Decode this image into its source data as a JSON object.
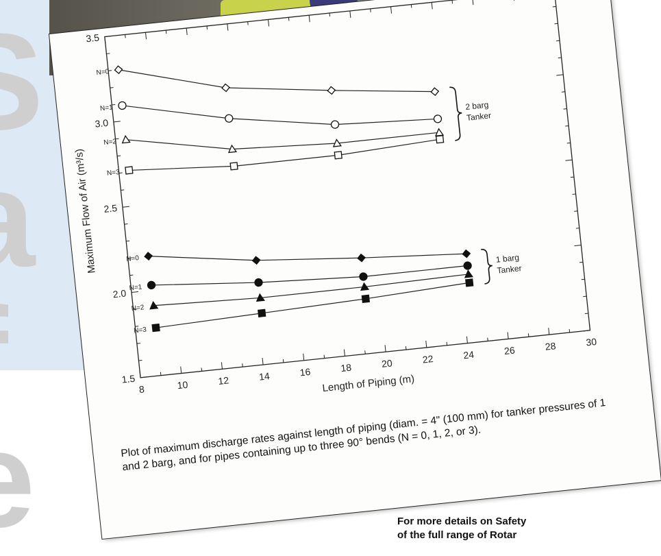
{
  "background": {
    "accent_blue": "#dde9f5",
    "letters": [
      "S",
      "a",
      "f",
      "e"
    ]
  },
  "chart_data": {
    "type": "line",
    "xlabel": "Length of Piping (m)",
    "ylabel": "Maximum Flow of Air (m³/s)",
    "xlim": [
      8,
      30
    ],
    "ylim": [
      1.5,
      3.5
    ],
    "x_ticks": [
      8,
      10,
      12,
      14,
      16,
      18,
      20,
      22,
      24,
      26,
      28,
      30
    ],
    "y_ticks": [
      1.5,
      2.0,
      2.5,
      3.0,
      3.5
    ],
    "grid": false,
    "series": [
      {
        "name": "N=0",
        "group": "2 barg",
        "marker": "diamond-open",
        "x": [
          8.5,
          13.6,
          18.7,
          23.7
        ],
        "y": [
          3.3,
          3.13,
          3.05,
          2.98
        ]
      },
      {
        "name": "N=1",
        "group": "2 barg",
        "marker": "circle-open",
        "x": [
          8.5,
          13.6,
          18.7,
          23.7
        ],
        "y": [
          3.09,
          2.95,
          2.85,
          2.82
        ]
      },
      {
        "name": "N=2",
        "group": "2 barg",
        "marker": "triangle-open",
        "x": [
          8.5,
          13.6,
          18.7,
          23.7
        ],
        "y": [
          2.89,
          2.77,
          2.74,
          2.74
        ]
      },
      {
        "name": "N=3",
        "group": "2 barg",
        "marker": "square-open",
        "x": [
          8.5,
          13.6,
          18.7,
          23.7
        ],
        "y": [
          2.71,
          2.67,
          2.67,
          2.7
        ]
      },
      {
        "name": "N=0",
        "group": "1 barg",
        "marker": "diamond-filled",
        "x": [
          9.0,
          14.2,
          19.3,
          24.4
        ],
        "y": [
          2.2,
          2.11,
          2.06,
          2.02
        ]
      },
      {
        "name": "N=1",
        "group": "1 barg",
        "marker": "circle-filled",
        "x": [
          9.0,
          14.2,
          19.3,
          24.4
        ],
        "y": [
          2.03,
          1.98,
          1.95,
          1.95
        ]
      },
      {
        "name": "N=2",
        "group": "1 barg",
        "marker": "triangle-filled",
        "x": [
          9.0,
          14.2,
          19.3,
          24.4
        ],
        "y": [
          1.91,
          1.89,
          1.89,
          1.9
        ]
      },
      {
        "name": "N=3",
        "group": "1 barg",
        "marker": "square-filled",
        "x": [
          9.0,
          14.2,
          19.3,
          24.4
        ],
        "y": [
          1.78,
          1.8,
          1.82,
          1.85
        ]
      }
    ],
    "groups": [
      {
        "label_line1": "2 barg",
        "label_line2": "Tanker"
      },
      {
        "label_line1": "1 barg",
        "label_line2": "Tanker"
      }
    ]
  },
  "caption": "Plot of maximum discharge rates against length of piping (diam. = 4\" (100 mm) for tanker pressures of 1 and 2 barg, and for pipes containing up to three 90° bends (N = 0, 1, 2, or 3).",
  "footer": {
    "line1": "For more details on Safety",
    "line2": "of the full range of Rotar"
  }
}
